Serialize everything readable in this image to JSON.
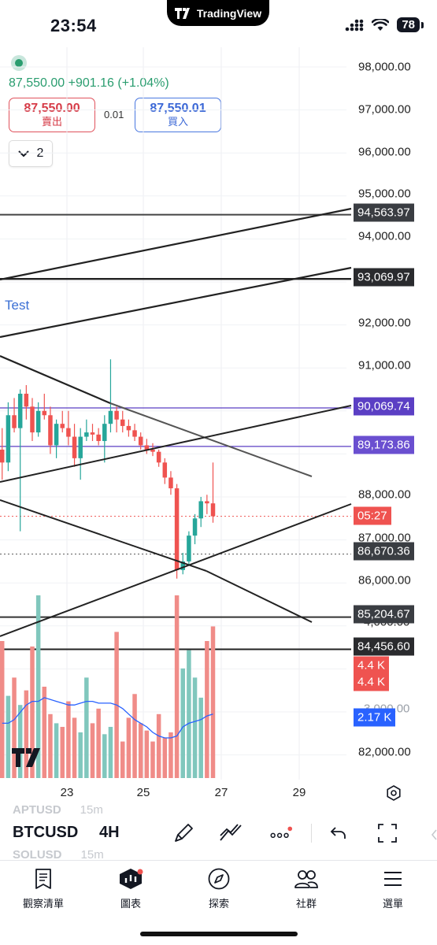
{
  "status_bar": {
    "time": "23:54",
    "app_pill": "TradingView",
    "battery": "78"
  },
  "symbol_header": {
    "last_price": "87,550.00",
    "change": "+901.16",
    "change_pct": "(+1.04%)",
    "sell_price": "87,550.00",
    "sell_label": "賣出",
    "spread": "0.01",
    "buy_price": "87,550.01",
    "buy_label": "買入",
    "collapse_count": "2"
  },
  "chart": {
    "drawing_label": "Test",
    "price_axis": [
      "98,000.00",
      "97,000.00",
      "96,000.00",
      "95,000.00",
      "94,000.00",
      "92,000.00",
      "91,000.00",
      "88,000.00",
      "87,000.00",
      "86,000.00",
      "82,000.00"
    ],
    "partial_axis_labels": [
      "4,000.00",
      "3,000.00"
    ],
    "price_tags": {
      "line_1": "94,563.97",
      "line_2": "93,069.97",
      "alert_1": "90,069.74",
      "alert_2": "89,173.86",
      "countdown": "05:27",
      "line_3": "86,670.36",
      "line_4": "85,204.67",
      "line_5": "84,456.60",
      "volume_1": "4.4 K",
      "volume_2": "4.4 K",
      "volume_ma": "2.17 K"
    },
    "time_axis": [
      "23",
      "25",
      "27",
      "29"
    ],
    "colors": {
      "up": "#26a69a",
      "down": "#ef5350",
      "alert": "#5b3fc4",
      "ma": "#2962ff",
      "drawing": "#131722",
      "countdown": "#ef5350",
      "ma_tag": "#2962ff"
    }
  },
  "chart_data": {
    "type": "candlestick",
    "symbol": "BTCUSD",
    "interval": "4H",
    "ylim": [
      81500,
      98500
    ],
    "x_ticks": [
      "23",
      "25",
      "27",
      "29"
    ],
    "candles": [
      [
        89100,
        89600,
        88400,
        88800
      ],
      [
        88800,
        90200,
        88600,
        89900
      ],
      [
        89900,
        90300,
        89500,
        89600
      ],
      [
        89600,
        90500,
        87200,
        90400
      ],
      [
        90400,
        90600,
        89800,
        90100
      ],
      [
        90100,
        90300,
        89300,
        89500
      ],
      [
        89500,
        90200,
        89400,
        90000
      ],
      [
        90000,
        90400,
        89800,
        89900
      ],
      [
        89900,
        90100,
        89000,
        89200
      ],
      [
        89200,
        89800,
        88900,
        89700
      ],
      [
        89700,
        90000,
        89500,
        89600
      ],
      [
        89600,
        90000,
        89200,
        89400
      ],
      [
        89400,
        89700,
        88700,
        88900
      ],
      [
        88900,
        89600,
        88400,
        89400
      ],
      [
        89400,
        89800,
        89300,
        89500
      ],
      [
        89500,
        89700,
        89300,
        89450
      ],
      [
        89450,
        89600,
        89200,
        89300
      ],
      [
        89300,
        89900,
        88800,
        89700
      ],
      [
        89700,
        91200,
        89500,
        90000
      ],
      [
        90000,
        90100,
        89500,
        89800
      ],
      [
        89800,
        90000,
        89500,
        89650
      ],
      [
        89650,
        89800,
        89400,
        89550
      ],
      [
        89550,
        89700,
        89300,
        89400
      ],
      [
        89400,
        89500,
        89100,
        89200
      ],
      [
        89200,
        89350,
        89000,
        89100
      ],
      [
        89100,
        89250,
        88950,
        89050
      ],
      [
        89050,
        89100,
        88700,
        88800
      ],
      [
        88800,
        88900,
        88300,
        88450
      ],
      [
        88450,
        88600,
        88050,
        88200
      ],
      [
        88200,
        88300,
        86100,
        86300
      ],
      [
        86300,
        86700,
        86200,
        86500
      ],
      [
        86500,
        87200,
        86400,
        87100
      ],
      [
        87100,
        87600,
        86900,
        87500
      ],
      [
        87500,
        88000,
        87300,
        87900
      ],
      [
        87900,
        88050,
        87600,
        87850
      ],
      [
        87850,
        88800,
        87400,
        87550
      ]
    ],
    "volume": {
      "axis_labels": [
        "4.4 K",
        "4.4 K",
        "2.17 K"
      ],
      "relative_bars": [
        0.75,
        0.45,
        0.55,
        0.4,
        0.48,
        0.72,
        1.0,
        0.5,
        0.35,
        0.3,
        0.28,
        0.42,
        0.33,
        0.25,
        0.55,
        0.3,
        0.38,
        0.24,
        0.28,
        0.8,
        0.2,
        0.33,
        0.46,
        0.3,
        0.26,
        0.2,
        0.35,
        0.22,
        0.25,
        1.0,
        0.6,
        0.7,
        0.55,
        0.44,
        0.75,
        0.83
      ]
    },
    "horizontal_levels": [
      94563.97,
      93069.97,
      90069.74,
      89173.86,
      86670.36,
      85204.67,
      84456.6
    ],
    "current_price": 87550.0
  },
  "toolbar": {
    "symbol": "BTCUSD",
    "interval": "4H",
    "ghost_rows": [
      {
        "symbol": "APTUSD",
        "interval": "15m"
      },
      {
        "symbol": "SOLUSD",
        "interval": "15m"
      }
    ]
  },
  "tabbar": {
    "watchlist": "觀察清單",
    "chart": "圖表",
    "explore": "探索",
    "community": "社群",
    "menu": "選單"
  }
}
